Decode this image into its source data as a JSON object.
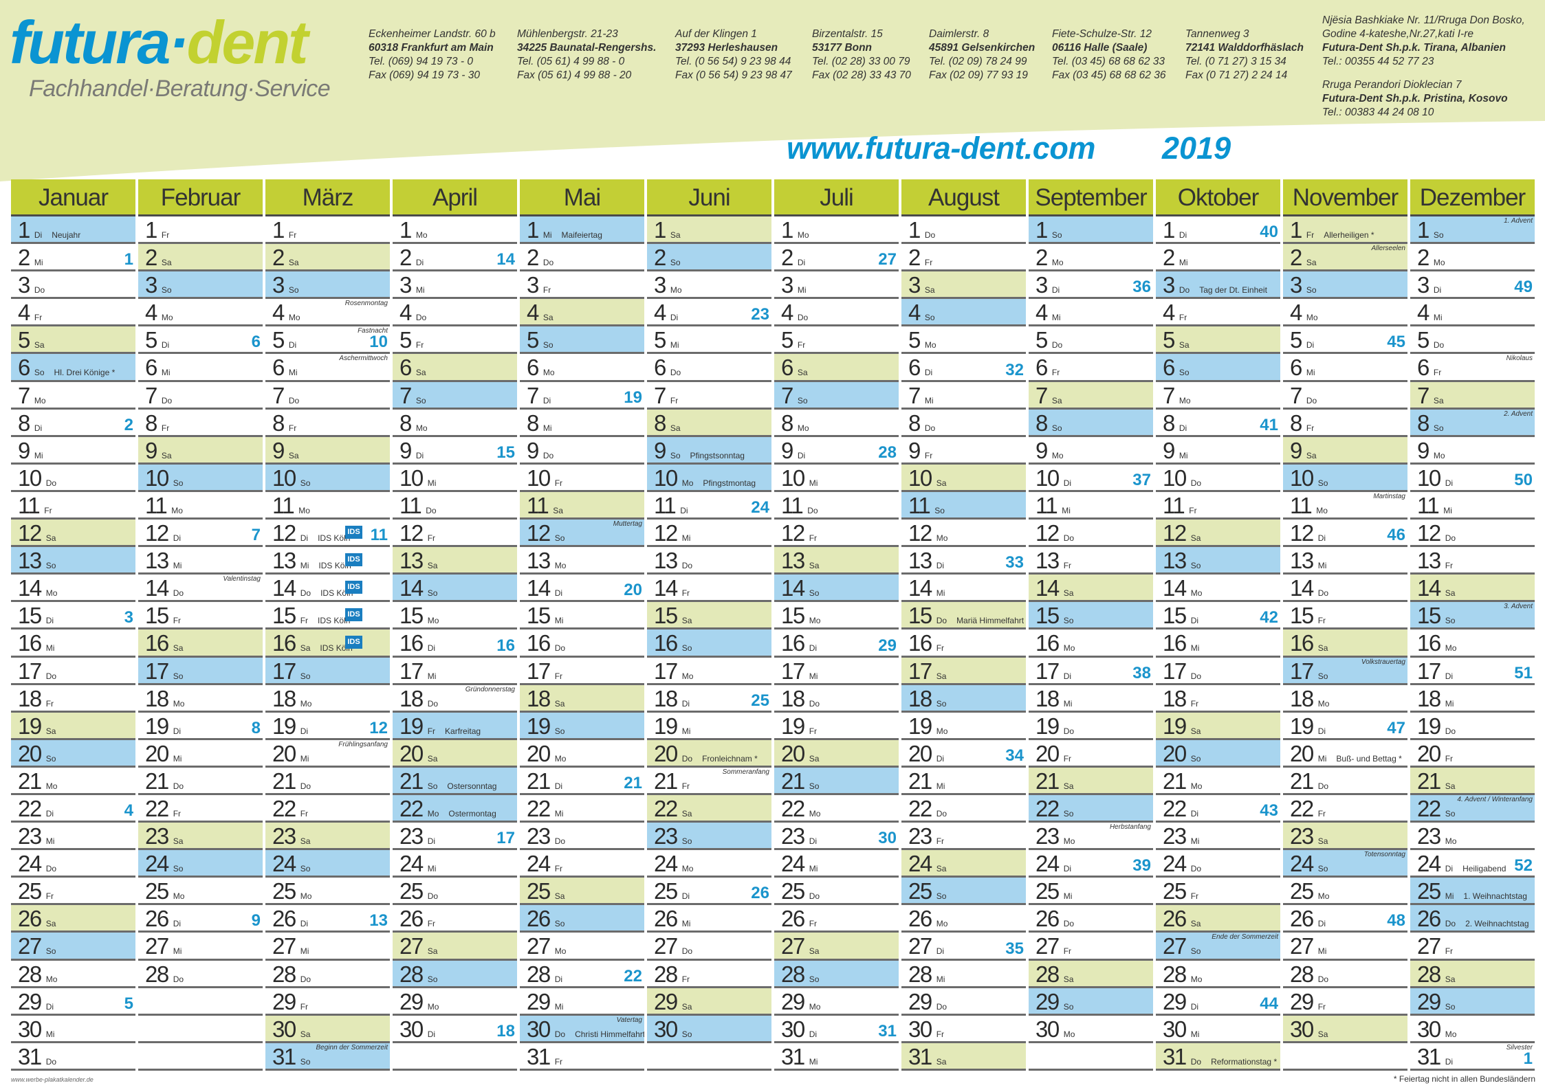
{
  "colors": {
    "brand_blue": "#0a94d2",
    "brand_green": "#c2d130",
    "header_bg": "#e6ebbb",
    "month_header": "#c3cf35",
    "saturday": "#e3e9b8",
    "sunday_holiday": "#a8d5ef",
    "week_number": "#1a94cc"
  },
  "logo": {
    "part1": "futura",
    "dot": "·",
    "part2": "dent",
    "tagline": "Fachhandel·Beratung·Service"
  },
  "addresses": [
    {
      "street": "Eckenheimer Landstr. 60 b",
      "city": "60318 Frankfurt am Main",
      "tel": "Tel. (069) 94 19 73 - 0",
      "fax": "Fax (069) 94 19 73 - 30"
    },
    {
      "street": "Mühlenbergstr. 21-23",
      "city": "34225 Baunatal-Rengershs.",
      "tel": "Tel. (05 61) 4 99 88 - 0",
      "fax": "Fax (05 61) 4 99 88 - 20"
    },
    {
      "street": "Auf der Klingen 1",
      "city": "37293 Herleshausen",
      "tel": "Tel. (0 56 54) 9 23 98 44",
      "fax": "Fax (0 56 54) 9 23 98 47"
    },
    {
      "street": "Birzentalstr. 15",
      "city": "53177 Bonn",
      "tel": "Tel. (02 28) 33 00 79",
      "fax": "Fax (02 28) 33 43 70"
    },
    {
      "street": "Daimlerstr. 8",
      "city": "45891 Gelsenkirchen",
      "tel": "Tel. (02 09) 78 24 99",
      "fax": "Fax (02 09) 77 93 19"
    },
    {
      "street": "Fiete-Schulze-Str. 12",
      "city": "06116 Halle (Saale)",
      "tel": "Tel. (03 45) 68 68 62 33",
      "fax": "Fax (03 45) 68 68 62 36"
    },
    {
      "street": "Tannenweg 3",
      "city": "72141 Walddorfhäslach",
      "tel": "Tel. (0 71 27) 3 15 34",
      "fax": "Fax (0 71 27) 2 24 14"
    }
  ],
  "intl": [
    {
      "line1": "Njësia Bashkiake Nr. 11/Rruga Don Bosko,",
      "line2": "Godine 4-kateshe,Nr.27,kati I-re",
      "name": "Futura-Dent Sh.p.k. Tirana, Albanien",
      "tel": "Tel.: 00355 44 52 77 23"
    },
    {
      "line1": "Rruga Perandori Dioklecian 7",
      "name": "Futura-Dent Sh.p.k. Pristina, Kosovo",
      "tel": "Tel.: 00383 44 24 08 10"
    }
  ],
  "website": "www.futura-dent.com",
  "year": "2019",
  "weekdays": [
    "Mo",
    "Di",
    "Mi",
    "Do",
    "Fr",
    "Sa",
    "So"
  ],
  "ids_label": "IDS",
  "months": [
    {
      "name": "Januar",
      "days": 31,
      "first": 1,
      "weeks": {
        "2": 1,
        "8": 2,
        "15": 3,
        "22": 4,
        "29": 5
      },
      "notes": {
        "1": "Neujahr",
        "6": "Hl. Drei Könige *"
      },
      "top": {},
      "bg": {
        "1": "sun"
      }
    },
    {
      "name": "Februar",
      "days": 28,
      "first": 4,
      "weeks": {
        "5": 6,
        "12": 7,
        "19": 8,
        "26": 9
      },
      "notes": {},
      "top": {
        "14": "Valentinstag"
      },
      "bg": {}
    },
    {
      "name": "März",
      "days": 31,
      "first": 4,
      "weeks": {
        "5": 10,
        "12": 11,
        "19": 12,
        "26": 13
      },
      "notes": {
        "12": "IDS Köln",
        "13": "IDS Köln",
        "14": "IDS Köln",
        "15": "IDS Köln",
        "16": "IDS Köln"
      },
      "ids": [
        12,
        13,
        14,
        15,
        16
      ],
      "top": {
        "4": "Rosenmontag",
        "5": "Fastnacht",
        "6": "Aschermittwoch",
        "20": "Frühlingsanfang",
        "31": "Beginn der Sommerzeit"
      },
      "bg": {}
    },
    {
      "name": "April",
      "days": 30,
      "first": 0,
      "weeks": {
        "2": 14,
        "9": 15,
        "16": 16,
        "23": 17,
        "30": 18
      },
      "notes": {
        "19": "Karfreitag",
        "21": "Ostersonntag",
        "22": "Ostermontag"
      },
      "top": {
        "18": "Gründonnerstag"
      },
      "bg": {
        "19": "sun",
        "22": "sun"
      }
    },
    {
      "name": "Mai",
      "days": 31,
      "first": 2,
      "weeks": {
        "7": 19,
        "14": 20,
        "21": 21,
        "28": 22
      },
      "notes": {
        "1": "Maifeiertag",
        "30": "Christi Himmelfahrt"
      },
      "top": {
        "12": "Muttertag",
        "30": "Vatertag"
      },
      "bg": {
        "1": "sun",
        "30": "sun"
      }
    },
    {
      "name": "Juni",
      "days": 30,
      "first": 5,
      "weeks": {
        "4": 23,
        "11": 24,
        "18": 25,
        "25": 26
      },
      "notes": {
        "9": "Pfingstsonntag",
        "10": "Pfingstmontag",
        "20": "Fronleichnam *"
      },
      "top": {
        "21": "Sommeranfang"
      },
      "bg": {
        "10": "sun",
        "20": "sat"
      }
    },
    {
      "name": "Juli",
      "days": 31,
      "first": 0,
      "weeks": {
        "2": 27,
        "9": 28,
        "16": 29,
        "23": 30,
        "30": 31
      },
      "notes": {},
      "top": {},
      "bg": {}
    },
    {
      "name": "August",
      "days": 31,
      "first": 3,
      "weeks": {
        "6": 32,
        "13": 33,
        "20": 34,
        "27": 35
      },
      "notes": {
        "15": "Mariä Himmelfahrt *"
      },
      "top": {},
      "bg": {
        "15": "sat"
      }
    },
    {
      "name": "September",
      "days": 30,
      "first": 6,
      "weeks": {
        "3": 36,
        "10": 37,
        "17": 38,
        "24": 39
      },
      "notes": {},
      "top": {
        "23": "Herbstanfang"
      },
      "bg": {}
    },
    {
      "name": "Oktober",
      "days": 31,
      "first": 1,
      "weeks": {
        "1": 40,
        "8": 41,
        "15": 42,
        "22": 43,
        "29": 44
      },
      "notes": {
        "3": "Tag der Dt. Einheit",
        "31": "Reformationstag *"
      },
      "top": {
        "27": "Ende der Sommerzeit"
      },
      "bg": {
        "3": "sun",
        "31": "sat"
      }
    },
    {
      "name": "November",
      "days": 30,
      "first": 4,
      "weeks": {
        "5": 45,
        "12": 46,
        "19": 47,
        "26": 48
      },
      "notes": {
        "1": "Allerheiligen *",
        "20": "Buß- und Bettag *"
      },
      "top": {
        "2": "Allerseelen",
        "11": "Martinstag",
        "17": "Volkstrauertag",
        "24": "Totensonntag"
      },
      "bg": {
        "1": "sat"
      }
    },
    {
      "name": "Dezember",
      "days": 31,
      "first": 6,
      "weeks": {
        "3": 49,
        "10": 50,
        "17": 51,
        "24": 52,
        "31": 1
      },
      "notes": {
        "24": "Heiligabend",
        "25": "1. Weihnachtstag",
        "26": "2. Weihnachtstag"
      },
      "top": {
        "1": "1. Advent",
        "6": "Nikolaus",
        "8": "2. Advent",
        "15": "3. Advent",
        "22": "4. Advent  /  Winteranfang",
        "31": "Silvester"
      },
      "bg": {
        "25": "sun",
        "26": "sun"
      }
    }
  ],
  "footer": {
    "left": "www.werbe-plakatkalender.de",
    "right": "* Feiertag nicht in allen Bundesländern"
  }
}
